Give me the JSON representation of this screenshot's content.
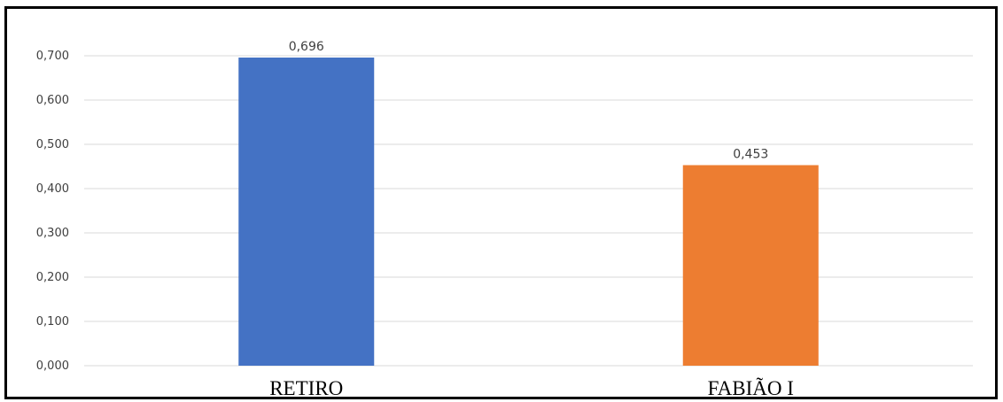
{
  "chart_data": {
    "type": "bar",
    "title": "",
    "xlabel": "",
    "ylabel": "",
    "categories": [
      "RETIRO",
      "FABIÃO I"
    ],
    "values": [
      0.696,
      0.453
    ],
    "data_labels": [
      "0,696",
      "0,453"
    ],
    "colors": [
      "#4472C4",
      "#ED7D31"
    ],
    "ylim": [
      0,
      0.7
    ],
    "yticks": [
      0,
      0.1,
      0.2,
      0.3,
      0.4,
      0.5,
      0.6,
      0.7
    ],
    "ytick_labels": [
      "0,000",
      "0,100",
      "0,200",
      "0,300",
      "0,400",
      "0,500",
      "0,600",
      "0,700"
    ],
    "grid": true,
    "legend": "none"
  }
}
